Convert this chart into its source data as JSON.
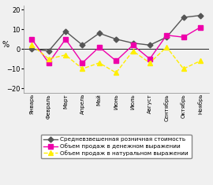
{
  "months": [
    "Январь",
    "Февраль",
    "Март",
    "Апрель",
    "Май",
    "Июнь",
    "Июль",
    "Август",
    "Сентябрь",
    "Октябрь",
    "Ноябрь"
  ],
  "series1_values": [
    0,
    -1,
    9,
    2,
    8,
    5,
    3,
    2,
    6,
    16,
    17
  ],
  "series2_values": [
    5,
    -7,
    5,
    -7,
    1,
    -6,
    2,
    -5,
    7,
    6,
    11
  ],
  "series3_values": [
    2,
    -5,
    -3,
    -10,
    -7,
    -12,
    -1,
    -7,
    1,
    -10,
    -6
  ],
  "series1_color": "#555555",
  "series2_color": "#ee00aa",
  "series3_color": "#ffee00",
  "series1_label": "Средневзвешенная розничная стоимость",
  "series2_label": "Объем продаж в денежном выражении",
  "series3_label": "Объем продаж в натуральном выражении",
  "ylabel": "%",
  "ylim": [
    -22,
    22
  ],
  "yticks": [
    -20,
    -10,
    0,
    10,
    20
  ],
  "background_color": "#f0f0f0",
  "plot_bg_color": "#f0f0f0"
}
